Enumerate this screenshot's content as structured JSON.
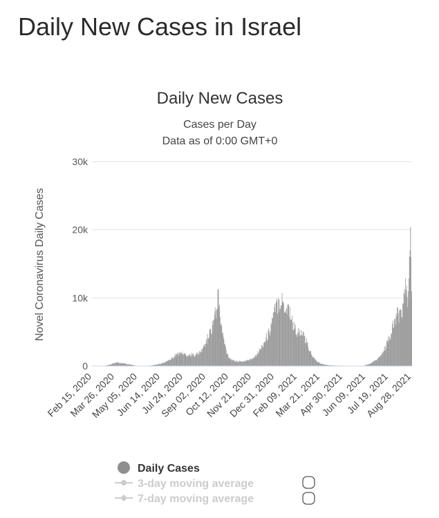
{
  "page": {
    "title": "Daily New Cases in Israel"
  },
  "chart_data": {
    "type": "bar",
    "title": "Daily New Cases",
    "subtitle_1": "Cases per Day",
    "subtitle_2": "Data as of 0:00 GMT+0",
    "ylabel": "Novel Coronavirus Daily Cases",
    "xlabel": "",
    "ylim": [
      0,
      30000
    ],
    "yticks": [
      {
        "value": 0,
        "label": "0"
      },
      {
        "value": 10000,
        "label": "10k"
      },
      {
        "value": 20000,
        "label": "20k"
      },
      {
        "value": 30000,
        "label": "30k"
      }
    ],
    "xticks": [
      "Feb 15, 2020",
      "Mar 26, 2020",
      "May 05, 2020",
      "Jun 14, 2020",
      "Jul 24, 2020",
      "Sep 02, 2020",
      "Oct 12, 2020",
      "Nov 21, 2020",
      "Dec 31, 2020",
      "Feb 09, 2021",
      "Mar 21, 2021",
      "Apr 30, 2021",
      "Jun 09, 2021",
      "Jul 19, 2021",
      "Aug 28, 2021"
    ],
    "x_start": "2020-02-15",
    "x_end": "2021-09-14",
    "grid": true,
    "legend_position": "bottom",
    "series": [
      {
        "name": "Daily Cases",
        "color": "#999999",
        "visible": true,
        "points": [
          [
            "2020-02-15",
            0
          ],
          [
            "2020-03-10",
            50
          ],
          [
            "2020-03-20",
            250
          ],
          [
            "2020-03-26",
            450
          ],
          [
            "2020-04-01",
            550
          ],
          [
            "2020-04-08",
            450
          ],
          [
            "2020-04-15",
            350
          ],
          [
            "2020-04-22",
            250
          ],
          [
            "2020-04-29",
            120
          ],
          [
            "2020-05-05",
            50
          ],
          [
            "2020-05-20",
            20
          ],
          [
            "2020-06-01",
            80
          ],
          [
            "2020-06-10",
            200
          ],
          [
            "2020-06-20",
            400
          ],
          [
            "2020-06-30",
            700
          ],
          [
            "2020-07-08",
            1200
          ],
          [
            "2020-07-16",
            1700
          ],
          [
            "2020-07-24",
            1900
          ],
          [
            "2020-08-01",
            1700
          ],
          [
            "2020-08-10",
            1600
          ],
          [
            "2020-08-20",
            1700
          ],
          [
            "2020-08-27",
            1900
          ],
          [
            "2020-09-02",
            2600
          ],
          [
            "2020-09-08",
            3600
          ],
          [
            "2020-09-14",
            4800
          ],
          [
            "2020-09-20",
            6000
          ],
          [
            "2020-09-24",
            8000
          ],
          [
            "2020-09-26",
            7000
          ],
          [
            "2020-09-29",
            11200
          ],
          [
            "2020-10-02",
            8000
          ],
          [
            "2020-10-05",
            6000
          ],
          [
            "2020-10-08",
            4500
          ],
          [
            "2020-10-12",
            3000
          ],
          [
            "2020-10-16",
            1800
          ],
          [
            "2020-10-20",
            1200
          ],
          [
            "2020-10-26",
            800
          ],
          [
            "2020-11-01",
            700
          ],
          [
            "2020-11-10",
            650
          ],
          [
            "2020-11-21",
            800
          ],
          [
            "2020-11-30",
            1100
          ],
          [
            "2020-12-08",
            1700
          ],
          [
            "2020-12-15",
            2500
          ],
          [
            "2020-12-22",
            3500
          ],
          [
            "2020-12-31",
            5000
          ],
          [
            "2021-01-06",
            7000
          ],
          [
            "2021-01-12",
            8500
          ],
          [
            "2021-01-18",
            9800
          ],
          [
            "2021-01-24",
            9500
          ],
          [
            "2021-01-30",
            8200
          ],
          [
            "2021-02-04",
            8800
          ],
          [
            "2021-02-09",
            6800
          ],
          [
            "2021-02-15",
            5500
          ],
          [
            "2021-02-22",
            4800
          ],
          [
            "2021-03-01",
            4500
          ],
          [
            "2021-03-08",
            3500
          ],
          [
            "2021-03-14",
            2200
          ],
          [
            "2021-03-21",
            1200
          ],
          [
            "2021-03-28",
            600
          ],
          [
            "2021-04-05",
            300
          ],
          [
            "2021-04-15",
            150
          ],
          [
            "2021-04-30",
            70
          ],
          [
            "2021-05-15",
            50
          ],
          [
            "2021-06-09",
            15
          ],
          [
            "2021-06-20",
            50
          ],
          [
            "2021-06-28",
            250
          ],
          [
            "2021-07-05",
            500
          ],
          [
            "2021-07-12",
            900
          ],
          [
            "2021-07-19",
            1300
          ],
          [
            "2021-07-26",
            2300
          ],
          [
            "2021-08-02",
            3500
          ],
          [
            "2021-08-08",
            4800
          ],
          [
            "2021-08-14",
            6500
          ],
          [
            "2021-08-20",
            7500
          ],
          [
            "2021-08-26",
            8200
          ],
          [
            "2021-08-30",
            8800
          ],
          [
            "2021-09-02",
            10500
          ],
          [
            "2021-09-05",
            11800
          ],
          [
            "2021-09-08",
            9500
          ],
          [
            "2021-09-12",
            20400
          ],
          [
            "2021-09-14",
            11000
          ]
        ]
      },
      {
        "name": "3-day moving average",
        "visible": false
      },
      {
        "name": "7-day moving average",
        "visible": false
      }
    ]
  },
  "colors": {
    "bar": "#999999",
    "grid": "#e2e2e2",
    "legend_off": "#cccccc",
    "legend_on": "#8f8f8f"
  },
  "icons": {
    "legend_symbol_on": "circle",
    "legend_symbol_off": "line-with-circle",
    "toggle": "rounded-square"
  }
}
